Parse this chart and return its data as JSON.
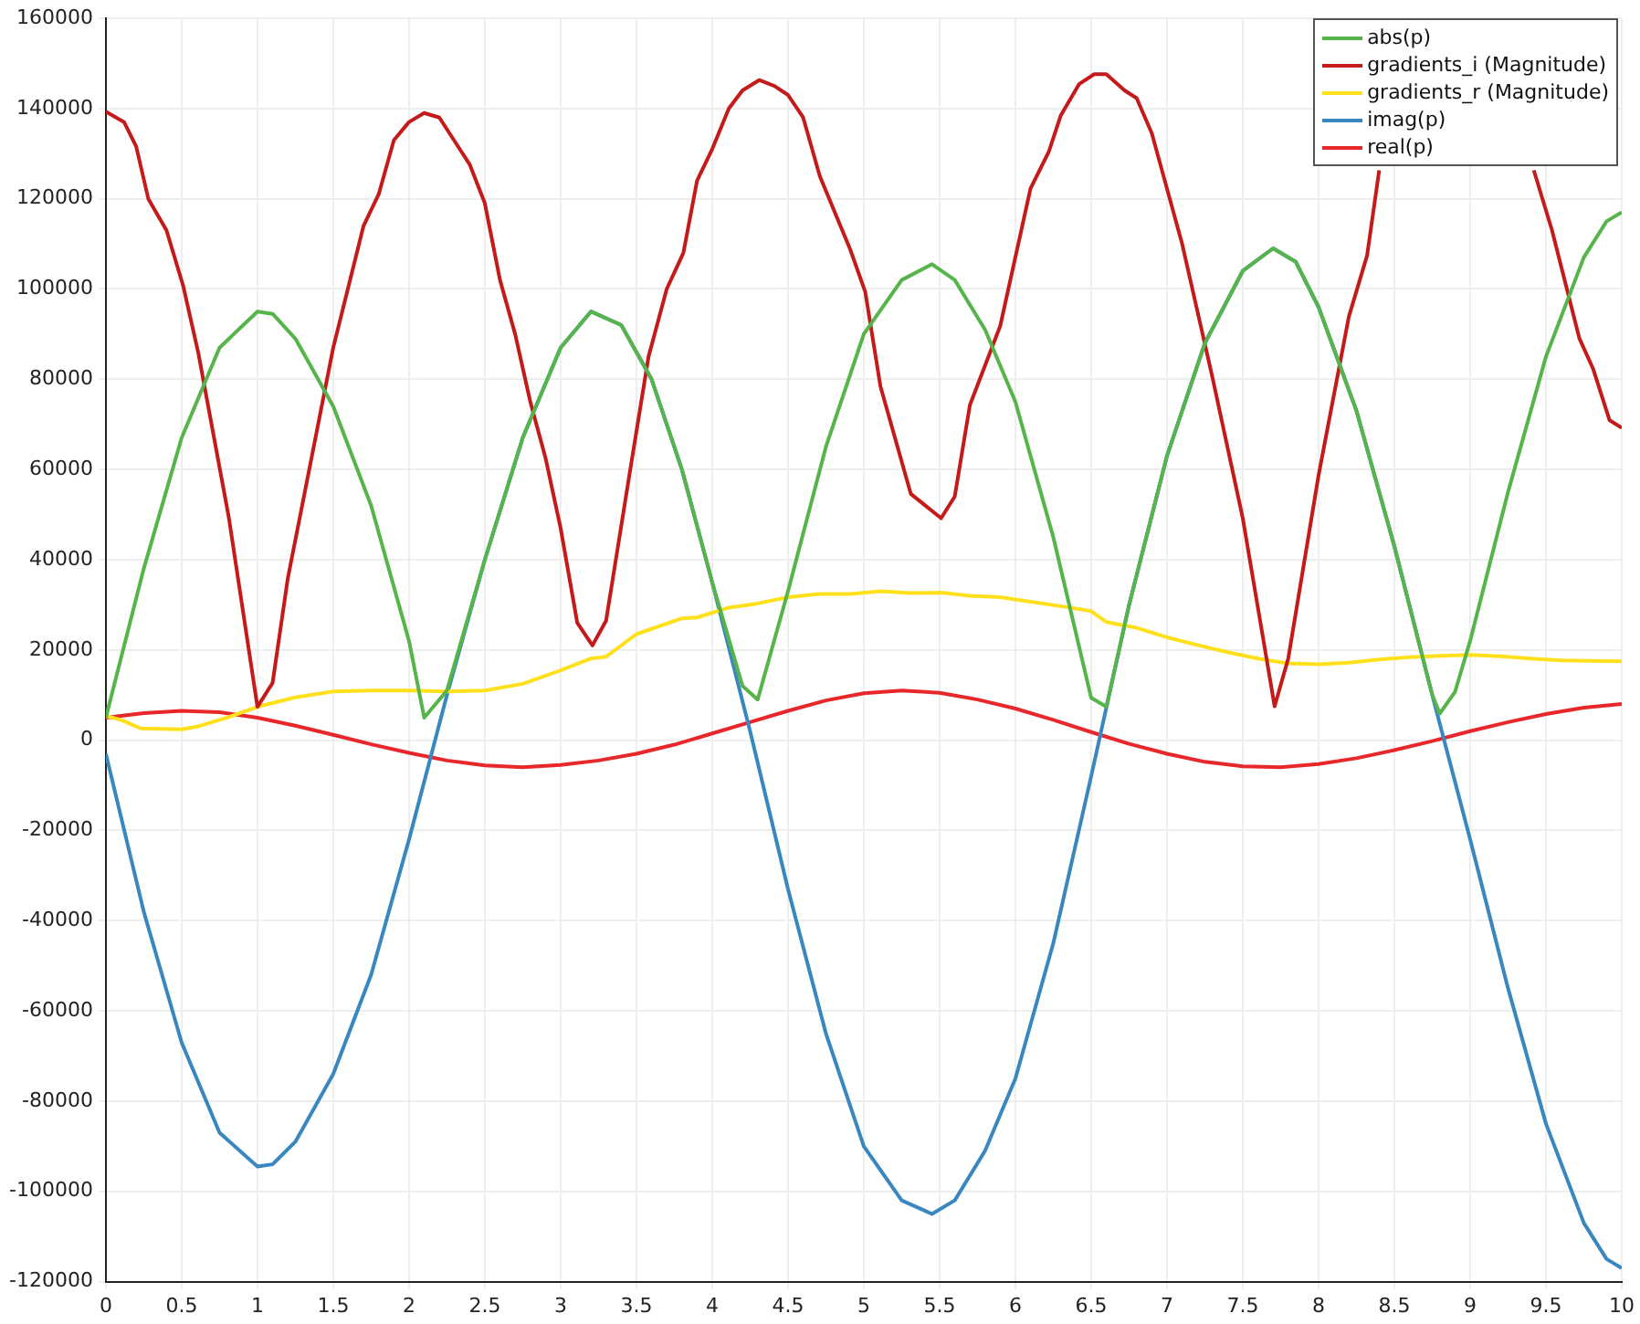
{
  "chart_data": {
    "type": "line",
    "xlim": [
      0,
      10
    ],
    "xticks": [
      0,
      0.5,
      1,
      1.5,
      2,
      2.5,
      3,
      3.5,
      4,
      4.5,
      5,
      5.5,
      6,
      6.5,
      7,
      7.5,
      8,
      8.5,
      9,
      9.5,
      10
    ],
    "ylim": [
      -120000,
      160000
    ],
    "yticks": [
      -120000,
      -100000,
      -80000,
      -60000,
      -40000,
      -20000,
      0,
      20000,
      40000,
      60000,
      80000,
      100000,
      120000,
      140000,
      160000
    ],
    "grid": true,
    "legend": "top right",
    "marker": "none",
    "line_style": "solid",
    "series": [
      {
        "name": "abs(p)",
        "color": "#56b44b",
        "x": [
          0,
          0.25,
          0.5,
          0.75,
          1,
          1.1,
          1.25,
          1.5,
          1.75,
          2,
          2.1,
          2.25,
          2.5,
          2.75,
          3,
          3.2,
          3.4,
          3.6,
          3.8,
          4,
          4.2,
          4.3,
          4.5,
          4.75,
          5,
          5.25,
          5.45,
          5.6,
          5.8,
          6,
          6.25,
          6.5,
          6.6,
          6.75,
          7,
          7.25,
          7.5,
          7.7,
          7.85,
          8,
          8.25,
          8.5,
          8.75,
          8.8,
          8.9,
          9,
          9.25,
          9.5,
          9.75,
          9.9,
          10
        ],
        "values": [
          5000,
          38000,
          67000,
          87000,
          95000,
          94500,
          89000,
          74000,
          52000,
          22000,
          5000,
          11000,
          40000,
          67000,
          87000,
          95000,
          92000,
          80000,
          60000,
          35000,
          12000,
          9000,
          33000,
          65000,
          90000,
          102000,
          105500,
          102000,
          91000,
          75000,
          45000,
          9400,
          7400,
          30000,
          63000,
          88000,
          104000,
          109000,
          106000,
          96000,
          73000,
          43000,
          10000,
          5900,
          10700,
          22000,
          55000,
          85000,
          107000,
          115000,
          117000
        ]
      },
      {
        "name": "gradients_i (Magnitude)",
        "color": "#c41a1a",
        "x": [
          0,
          0.12,
          0.2,
          0.28,
          0.4,
          0.51,
          0.61,
          0.81,
          1,
          1.1,
          1.2,
          1.5,
          1.7,
          1.8,
          1.9,
          2,
          2.1,
          2.2,
          2.4,
          2.5,
          2.6,
          2.7,
          2.8,
          2.9,
          3,
          3.11,
          3.21,
          3.3,
          3.45,
          3.58,
          3.7,
          3.81,
          3.9,
          4,
          4.11,
          4.2,
          4.31,
          4.41,
          4.5,
          4.6,
          4.71,
          4.91,
          5.01,
          5.11,
          5.31,
          5.51,
          5.6,
          5.7,
          5.9,
          6.1,
          6.22,
          6.3,
          6.42,
          6.52,
          6.6,
          6.72,
          6.8,
          6.9,
          7.1,
          7.3,
          7.5,
          7.71,
          7.8,
          8,
          8.2,
          8.32,
          8.4,
          8.9,
          9.42,
          9.54,
          9.72,
          9.81,
          9.92,
          10
        ],
        "values": [
          139300,
          137000,
          131600,
          120000,
          113000,
          100700,
          85800,
          49600,
          7400,
          12700,
          35800,
          87000,
          114000,
          121000,
          133000,
          137000,
          139000,
          138000,
          127600,
          119000,
          102000,
          90000,
          75000,
          62600,
          47000,
          26000,
          21000,
          26500,
          58000,
          85000,
          100000,
          108000,
          124000,
          131000,
          140000,
          144000,
          146300,
          145000,
          143000,
          138000,
          125000,
          108800,
          99300,
          78400,
          54600,
          49200,
          54000,
          74300,
          91800,
          122300,
          130400,
          138500,
          145400,
          147600,
          147600,
          144000,
          142300,
          134500,
          110000,
          80400,
          49200,
          7500,
          18100,
          58700,
          93900,
          107400,
          126300,
          null,
          126300,
          113000,
          89100,
          82400,
          70900,
          69200
        ]
      },
      {
        "name": "gradients_r (Magnitude)",
        "color": "#ffe01a",
        "x": [
          0,
          0.1,
          0.23,
          0.5,
          0.6,
          0.8,
          1,
          1.25,
          1.5,
          1.75,
          2,
          2.25,
          2.5,
          2.75,
          3,
          3.2,
          3.3,
          3.5,
          3.8,
          3.9,
          4.1,
          4.3,
          4.5,
          4.71,
          4.91,
          5.11,
          5.31,
          5.51,
          5.7,
          5.9,
          6.1,
          6.3,
          6.5,
          6.6,
          6.8,
          7,
          7.2,
          7.4,
          7.6,
          7.8,
          8,
          8.2,
          8.4,
          8.6,
          8.8,
          9,
          9.2,
          9.4,
          9.6,
          10
        ],
        "values": [
          5400,
          4500,
          2600,
          2400,
          3000,
          5000,
          7400,
          9500,
          10800,
          11000,
          11000,
          10800,
          11000,
          12500,
          15500,
          18100,
          18500,
          23500,
          27000,
          27200,
          29300,
          30300,
          31700,
          32400,
          32400,
          33000,
          32600,
          32700,
          32000,
          31700,
          30700,
          29700,
          28600,
          26200,
          24900,
          22800,
          21100,
          19500,
          18100,
          17000,
          16800,
          17200,
          17900,
          18400,
          18700,
          18900,
          18600,
          18100,
          17700,
          17500
        ]
      },
      {
        "name": "imag(p)",
        "color": "#3a87c0",
        "x": [
          0,
          0.25,
          0.5,
          0.75,
          1,
          1.1,
          1.25,
          1.5,
          1.75,
          2,
          2.25,
          2.5,
          2.75,
          3,
          3.2,
          3.4,
          3.6,
          3.8,
          4,
          4.25,
          4.5,
          4.75,
          5,
          5.25,
          5.45,
          5.6,
          5.8,
          6,
          6.25,
          6.5,
          6.75,
          7,
          7.25,
          7.5,
          7.7,
          7.85,
          8,
          8.25,
          8.5,
          8.75,
          9,
          9.25,
          9.5,
          9.75,
          9.9,
          10
        ],
        "values": [
          -3000,
          -38000,
          -67000,
          -87000,
          -94500,
          -94000,
          -89000,
          -74000,
          -52000,
          -22000,
          10000,
          40000,
          67000,
          87000,
          95000,
          92000,
          80000,
          60000,
          35000,
          2000,
          -33000,
          -65000,
          -90000,
          -102000,
          -105000,
          -102000,
          -91000,
          -75000,
          -45000,
          -8000,
          30000,
          63000,
          88000,
          104000,
          109000,
          106000,
          96000,
          73000,
          43000,
          10000,
          -22000,
          -55000,
          -85000,
          -107000,
          -115000,
          -117000
        ]
      },
      {
        "name": "real(p)",
        "color": "#e8272a",
        "x": [
          0,
          0.25,
          0.5,
          0.75,
          1,
          1.25,
          1.5,
          1.75,
          2,
          2.25,
          2.5,
          2.75,
          3,
          3.25,
          3.5,
          3.75,
          4,
          4.25,
          4.5,
          4.75,
          5,
          5.25,
          5.5,
          5.75,
          6,
          6.25,
          6.5,
          6.75,
          7,
          7.25,
          7.5,
          7.75,
          8,
          8.25,
          8.5,
          8.75,
          9,
          9.25,
          9.5,
          9.75,
          10
        ],
        "values": [
          5000,
          6000,
          6500,
          6200,
          5000,
          3200,
          1200,
          -900,
          -2800,
          -4500,
          -5600,
          -6000,
          -5500,
          -4500,
          -3000,
          -1000,
          1500,
          4000,
          6500,
          8800,
          10400,
          11000,
          10500,
          9000,
          7000,
          4500,
          1800,
          -800,
          -3000,
          -4800,
          -5800,
          -6000,
          -5300,
          -4000,
          -2200,
          -200,
          2000,
          4000,
          5800,
          7200,
          8000
        ]
      }
    ]
  }
}
